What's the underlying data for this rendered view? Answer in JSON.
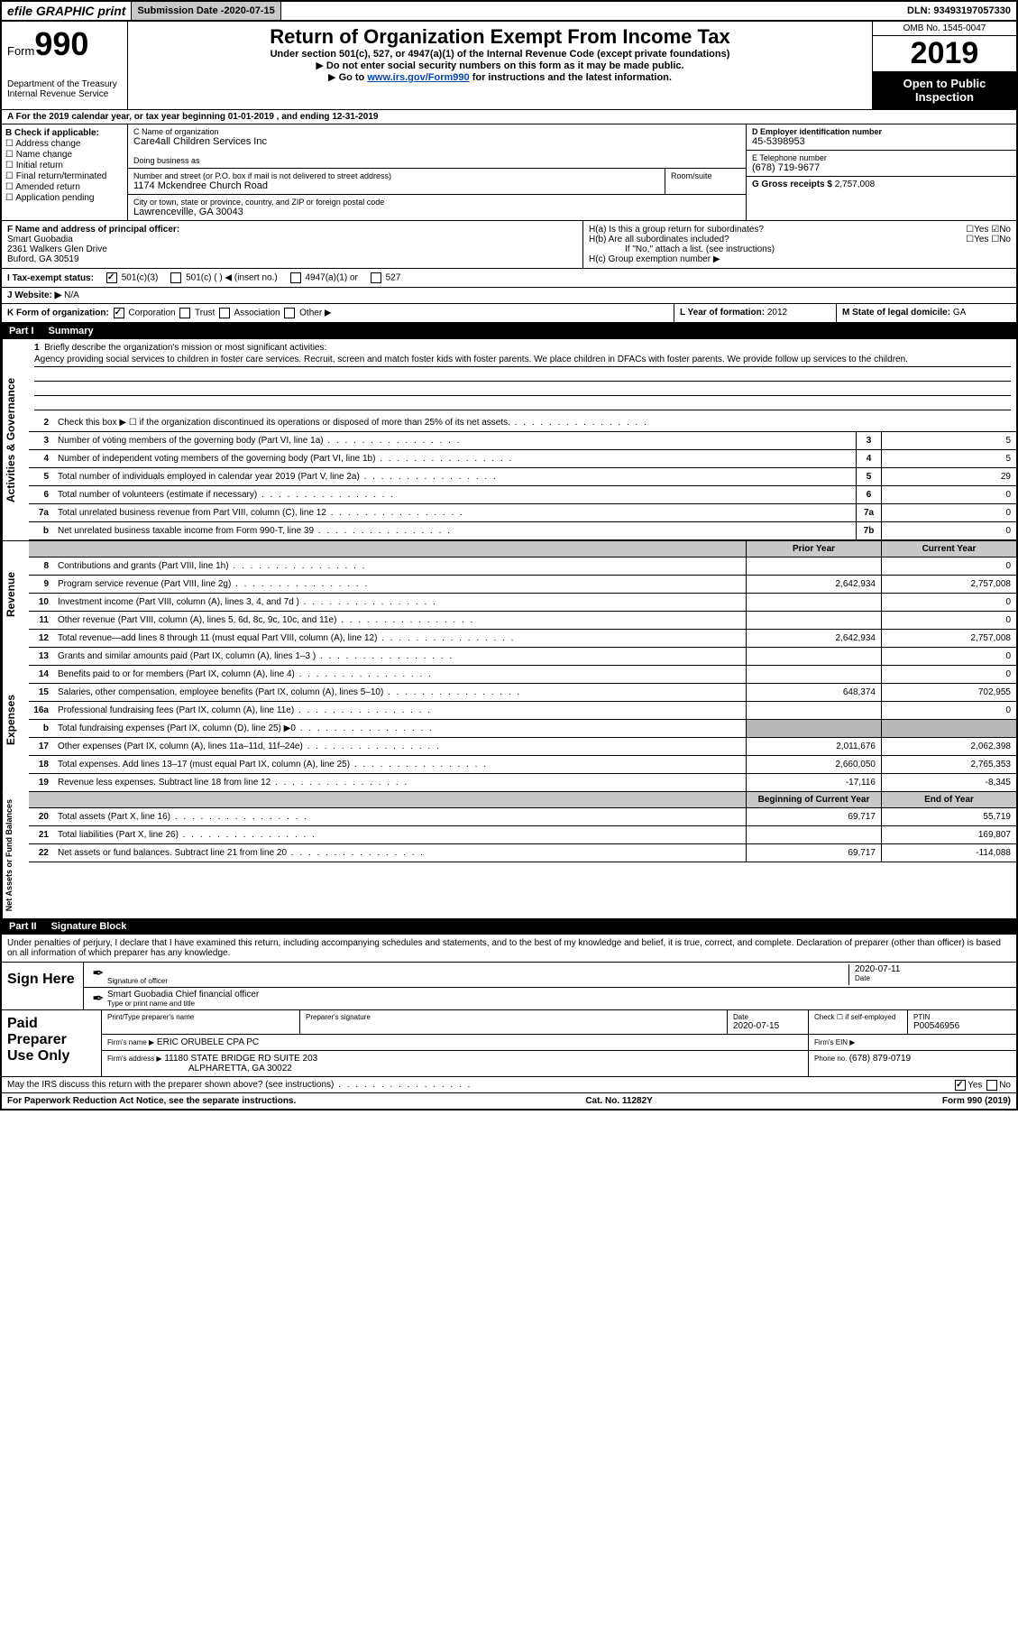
{
  "topbar": {
    "efile": "efile GRAPHIC print",
    "submission_label": "Submission Date - ",
    "submission_date": "2020-07-15",
    "dln_label": "DLN: ",
    "dln": "93493197057330"
  },
  "header": {
    "form_word": "Form",
    "form_num": "990",
    "dept1": "Department of the Treasury",
    "dept2": "Internal Revenue Service",
    "title": "Return of Organization Exempt From Income Tax",
    "subtitle": "Under section 501(c), 527, or 4947(a)(1) of the Internal Revenue Code (except private foundations)",
    "instr1": "Do not enter social security numbers on this form as it may be made public.",
    "instr2_pre": "Go to ",
    "instr2_link": "www.irs.gov/Form990",
    "instr2_post": " for instructions and the latest information.",
    "omb": "OMB No. 1545-0047",
    "year": "2019",
    "inspection": "Open to Public Inspection"
  },
  "row_a": "A For the 2019 calendar year, or tax year beginning 01-01-2019   , and ending 12-31-2019",
  "box_b": {
    "label": "B Check if applicable:",
    "items": [
      "Address change",
      "Name change",
      "Initial return",
      "Final return/terminated",
      "Amended return",
      "Application pending"
    ]
  },
  "box_c": {
    "name_label": "C Name of organization",
    "name": "Care4all Children Services Inc",
    "dba_label": "Doing business as",
    "addr_label": "Number and street (or P.O. box if mail is not delivered to street address)",
    "room_label": "Room/suite",
    "addr": "1174 Mckendree Church Road",
    "city_label": "City or town, state or province, country, and ZIP or foreign postal code",
    "city": "Lawrenceville, GA  30043"
  },
  "box_d": {
    "label": "D Employer identification number",
    "val": "45-5398953"
  },
  "box_e": {
    "label": "E Telephone number",
    "val": "(678) 719-9677"
  },
  "box_g": {
    "label": "G Gross receipts $ ",
    "val": "2,757,008"
  },
  "box_f": {
    "label": "F  Name and address of principal officer:",
    "name": "Smart Guobadia",
    "addr1": "2361 Walkers Glen Drive",
    "addr2": "Buford, GA  30519"
  },
  "box_h": {
    "a": "H(a)  Is this a group return for subordinates?",
    "b": "H(b)  Are all subordinates included?",
    "b_note": "If \"No,\" attach a list. (see instructions)",
    "c": "H(c)  Group exemption number ▶",
    "yes": "Yes",
    "no": "No"
  },
  "row_i": {
    "label": "I  Tax-exempt status:",
    "o1": "501(c)(3)",
    "o2": "501(c) (  ) ◀ (insert no.)",
    "o3": "4947(a)(1) or",
    "o4": "527"
  },
  "row_j": {
    "label": "J  Website: ▶",
    "val": " N/A"
  },
  "row_k": {
    "label": "K Form of organization:",
    "o1": "Corporation",
    "o2": "Trust",
    "o3": "Association",
    "o4": "Other ▶",
    "l": "L Year of formation: ",
    "l_val": "2012",
    "m": "M State of legal domicile: ",
    "m_val": "GA"
  },
  "part1": {
    "num": "Part I",
    "title": "Summary"
  },
  "mission": {
    "num": "1",
    "label": "Briefly describe the organization's mission or most significant activities:",
    "text": "Agency providing social services to children in foster care services. Recruit, screen and match foster kids with foster parents. We place children in DFACs with foster parents. We provide follow up services to the children."
  },
  "lines_gov": [
    {
      "n": "2",
      "t": "Check this box ▶ ☐  if the organization discontinued its operations or disposed of more than 25% of its net assets."
    },
    {
      "n": "3",
      "t": "Number of voting members of the governing body (Part VI, line 1a)",
      "c": "3",
      "v": "5"
    },
    {
      "n": "4",
      "t": "Number of independent voting members of the governing body (Part VI, line 1b)",
      "c": "4",
      "v": "5"
    },
    {
      "n": "5",
      "t": "Total number of individuals employed in calendar year 2019 (Part V, line 2a)",
      "c": "5",
      "v": "29"
    },
    {
      "n": "6",
      "t": "Total number of volunteers (estimate if necessary)",
      "c": "6",
      "v": "0"
    },
    {
      "n": "7a",
      "t": "Total unrelated business revenue from Part VIII, column (C), line 12",
      "c": "7a",
      "v": "0"
    },
    {
      "n": "b",
      "t": "Net unrelated business taxable income from Form 990-T, line 39",
      "c": "7b",
      "v": "0"
    }
  ],
  "colhdr": {
    "prior": "Prior Year",
    "current": "Current Year"
  },
  "lines_rev": [
    {
      "n": "8",
      "t": "Contributions and grants (Part VIII, line 1h)",
      "p": "",
      "c": "0"
    },
    {
      "n": "9",
      "t": "Program service revenue (Part VIII, line 2g)",
      "p": "2,642,934",
      "c": "2,757,008"
    },
    {
      "n": "10",
      "t": "Investment income (Part VIII, column (A), lines 3, 4, and 7d )",
      "p": "",
      "c": "0"
    },
    {
      "n": "11",
      "t": "Other revenue (Part VIII, column (A), lines 5, 6d, 8c, 9c, 10c, and 11e)",
      "p": "",
      "c": "0"
    },
    {
      "n": "12",
      "t": "Total revenue—add lines 8 through 11 (must equal Part VIII, column (A), line 12)",
      "p": "2,642,934",
      "c": "2,757,008"
    }
  ],
  "lines_exp": [
    {
      "n": "13",
      "t": "Grants and similar amounts paid (Part IX, column (A), lines 1–3 )",
      "p": "",
      "c": "0"
    },
    {
      "n": "14",
      "t": "Benefits paid to or for members (Part IX, column (A), line 4)",
      "p": "",
      "c": "0"
    },
    {
      "n": "15",
      "t": "Salaries, other compensation, employee benefits (Part IX, column (A), lines 5–10)",
      "p": "648,374",
      "c": "702,955"
    },
    {
      "n": "16a",
      "t": "Professional fundraising fees (Part IX, column (A), line 11e)",
      "p": "",
      "c": "0"
    },
    {
      "n": "b",
      "t": "Total fundraising expenses (Part IX, column (D), line 25) ▶0",
      "grey": true
    },
    {
      "n": "17",
      "t": "Other expenses (Part IX, column (A), lines 11a–11d, 11f–24e)",
      "p": "2,011,676",
      "c": "2,062,398"
    },
    {
      "n": "18",
      "t": "Total expenses. Add lines 13–17 (must equal Part IX, column (A), line 25)",
      "p": "2,660,050",
      "c": "2,765,353"
    },
    {
      "n": "19",
      "t": "Revenue less expenses. Subtract line 18 from line 12",
      "p": "-17,116",
      "c": "-8,345"
    }
  ],
  "colhdr2": {
    "prior": "Beginning of Current Year",
    "current": "End of Year"
  },
  "lines_net": [
    {
      "n": "20",
      "t": "Total assets (Part X, line 16)",
      "p": "69,717",
      "c": "55,719"
    },
    {
      "n": "21",
      "t": "Total liabilities (Part X, line 26)",
      "p": "",
      "c": "169,807"
    },
    {
      "n": "22",
      "t": "Net assets or fund balances. Subtract line 21 from line 20",
      "p": "69,717",
      "c": "-114,088"
    }
  ],
  "vlabels": {
    "gov": "Activities & Governance",
    "rev": "Revenue",
    "exp": "Expenses",
    "net": "Net Assets or Fund Balances"
  },
  "part2": {
    "num": "Part II",
    "title": "Signature Block"
  },
  "sig": {
    "intro": "Under penalties of perjury, I declare that I have examined this return, including accompanying schedules and statements, and to the best of my knowledge and belief, it is true, correct, and complete. Declaration of preparer (other than officer) is based on all information of which preparer has any knowledge.",
    "sign_here": "Sign Here",
    "sig_officer": "Signature of officer",
    "date": "Date",
    "date_val": "2020-07-11",
    "name_title": "Smart Guobadia  Chief financial officer",
    "type_print": "Type or print name and title"
  },
  "prep": {
    "label": "Paid Preparer Use Only",
    "h1": "Print/Type preparer's name",
    "h2": "Preparer's signature",
    "h3": "Date",
    "h3v": "2020-07-15",
    "h4": "Check ☐ if self-employed",
    "h5": "PTIN",
    "h5v": "P00546956",
    "firm_name_l": "Firm's name    ▶",
    "firm_name": "ERIC ORUBELE CPA PC",
    "firm_ein_l": "Firm's EIN ▶",
    "firm_addr_l": "Firm's address ▶",
    "firm_addr1": "11180 STATE BRIDGE RD SUITE 203",
    "firm_addr2": "ALPHARETTA, GA  30022",
    "phone_l": "Phone no. ",
    "phone": "(678) 879-0719",
    "discuss": "May the IRS discuss this return with the preparer shown above? (see instructions)",
    "yes": "Yes",
    "no": "No"
  },
  "footer": {
    "left": "For Paperwork Reduction Act Notice, see the separate instructions.",
    "mid": "Cat. No. 11282Y",
    "right": "Form 990 (2019)"
  }
}
